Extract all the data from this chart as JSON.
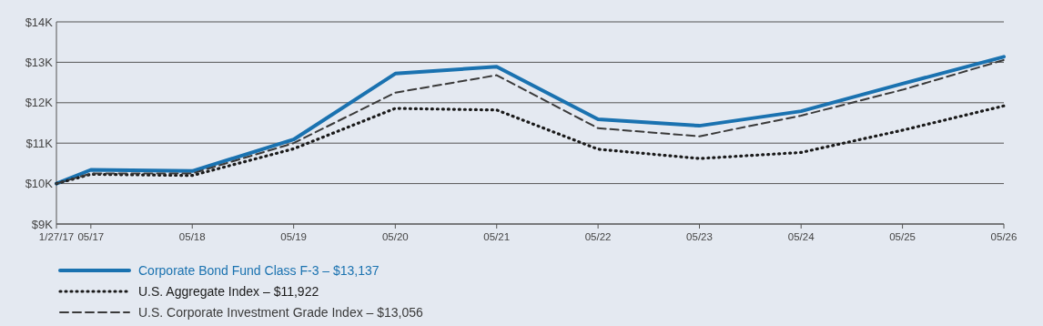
{
  "chart_data": {
    "type": "line",
    "x": [
      "2017-01-27",
      "2017-05-31",
      "2018-05-31",
      "2019-05-31",
      "2020-05-31",
      "2021-05-31",
      "2022-05-31",
      "2023-05-31",
      "2024-05-31",
      "2025-05-31",
      "2026-05-31"
    ],
    "xlim": [
      "2017-01-27",
      "2026-05-31"
    ],
    "xticks": [
      {
        "value": "2017-01-27",
        "label": "1/27/17"
      },
      {
        "value": "2017-05-31",
        "label": "05/17"
      },
      {
        "value": "2018-05-31",
        "label": "05/18"
      },
      {
        "value": "2019-05-31",
        "label": "05/19"
      },
      {
        "value": "2020-05-31",
        "label": "05/20"
      },
      {
        "value": "2021-05-31",
        "label": "05/21"
      },
      {
        "value": "2022-05-31",
        "label": "05/22"
      },
      {
        "value": "2023-05-31",
        "label": "05/23"
      },
      {
        "value": "2024-05-31",
        "label": "05/24"
      },
      {
        "value": "2025-05-31",
        "label": "05/25"
      },
      {
        "value": "2026-05-31",
        "label": "05/26"
      }
    ],
    "ylim": [
      9000,
      14000
    ],
    "yticks": [
      {
        "value": 9000,
        "label": "$9K"
      },
      {
        "value": 10000,
        "label": "$10K"
      },
      {
        "value": 11000,
        "label": "$11K"
      },
      {
        "value": 12000,
        "label": "$12K"
      },
      {
        "value": 13000,
        "label": "$13K"
      },
      {
        "value": 14000,
        "label": "$14K"
      }
    ],
    "grid": "y",
    "legend": "bottom",
    "series": [
      {
        "name": "Corporate Bond Fund Class F-3 – $13,137",
        "color": "#1a72b0",
        "line_style": "solid",
        "values": [
          10000,
          10340,
          10310,
          11090,
          12720,
          12890,
          11590,
          11430,
          11790,
          12470,
          13137
        ]
      },
      {
        "name": "U.S. Aggregate Index – $11,922",
        "color": "#1a1a1a",
        "line_style": "dotted",
        "values": [
          10000,
          10230,
          10200,
          10860,
          11860,
          11820,
          10850,
          10620,
          10770,
          11320,
          11922
        ]
      },
      {
        "name": "U.S. Corporate Investment Grade Index – $13,056",
        "color": "#3a3a3a",
        "line_style": "dashed",
        "values": [
          10000,
          10250,
          10250,
          11000,
          12250,
          12680,
          11370,
          11170,
          11680,
          12320,
          13056
        ]
      }
    ]
  }
}
